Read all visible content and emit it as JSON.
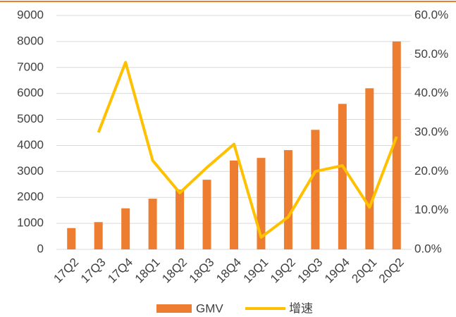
{
  "chart_data": {
    "type": "bar_line",
    "categories": [
      "17Q2",
      "17Q3",
      "17Q4",
      "18Q1",
      "18Q2",
      "18Q3",
      "18Q4",
      "19Q1",
      "19Q2",
      "19Q3",
      "19Q4",
      "20Q1",
      "20Q2"
    ],
    "series": [
      {
        "name": "GMV",
        "color": "#ed7d31",
        "type": "bar",
        "values": [
          820,
          1050,
          1580,
          1950,
          2300,
          2680,
          3420,
          3520,
          3820,
          4600,
          5600,
          6200,
          8000
        ]
      },
      {
        "name": "增速",
        "color": "#ffc000",
        "type": "line",
        "axis": "y2",
        "values": [
          null,
          30,
          48,
          22.8,
          14.5,
          21,
          27,
          3.1,
          8.3,
          20,
          21.5,
          10.8,
          28.9
        ]
      }
    ],
    "ylim": [
      0,
      9000
    ],
    "yticks": [
      0,
      1000,
      2000,
      3000,
      4000,
      5000,
      6000,
      7000,
      8000,
      9000
    ],
    "y2lim": [
      0,
      60
    ],
    "y2ticks": [
      {
        "value": 0,
        "label": "0.0%"
      },
      {
        "value": 10,
        "label": "10.0%"
      },
      {
        "value": 20,
        "label": "20.0%"
      },
      {
        "value": 30,
        "label": "30.0%"
      },
      {
        "value": 40,
        "label": "40.0%"
      },
      {
        "value": 50,
        "label": "50.0%"
      },
      {
        "value": 60,
        "label": "60.0%"
      }
    ],
    "grid": true,
    "legend": "bottom"
  }
}
